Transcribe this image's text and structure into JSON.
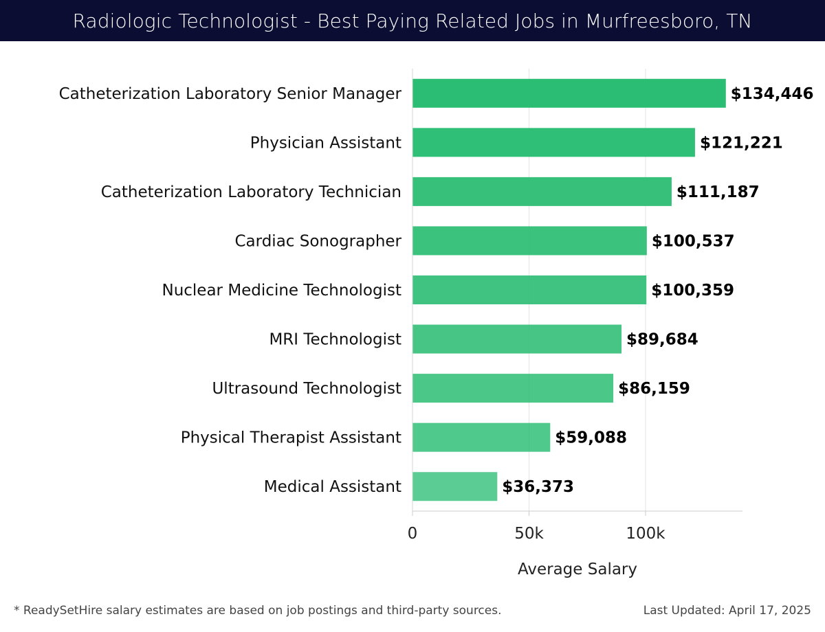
{
  "header": {
    "title": "Radiologic Technologist - Best Paying Related Jobs in Murfreesboro, TN"
  },
  "chart_data": {
    "type": "bar",
    "orientation": "horizontal",
    "title": "Radiologic Technologist - Best Paying Related Jobs in Murfreesboro, TN",
    "xlabel": "Average Salary",
    "ylabel": "",
    "categories": [
      "Catheterization Laboratory Senior Manager",
      "Physician Assistant",
      "Catheterization Laboratory Technician",
      "Cardiac Sonographer",
      "Nuclear Medicine Technologist",
      "MRI Technologist",
      "Ultrasound Technologist",
      "Physical Therapist Assistant",
      "Medical Assistant"
    ],
    "values": [
      134446,
      121221,
      111187,
      100537,
      100359,
      89684,
      86159,
      59088,
      36373
    ],
    "value_labels": [
      "$134,446",
      "$121,221",
      "$111,187",
      "$100,537",
      "$100,359",
      "$89,684",
      "$86,159",
      "$59,088",
      "$36,373"
    ],
    "xlim": [
      0,
      141000
    ],
    "xticks": [
      0,
      50000,
      100000
    ],
    "xtick_labels": [
      "0",
      "50k",
      "100k"
    ],
    "grid": "vertical",
    "bar_color": "#2bbd73",
    "bar_color_lightest": "#5ccc95"
  },
  "footer": {
    "note": "* ReadySetHire salary estimates are based on job postings and third-party sources.",
    "updated": "Last Updated: April 17, 2025"
  }
}
